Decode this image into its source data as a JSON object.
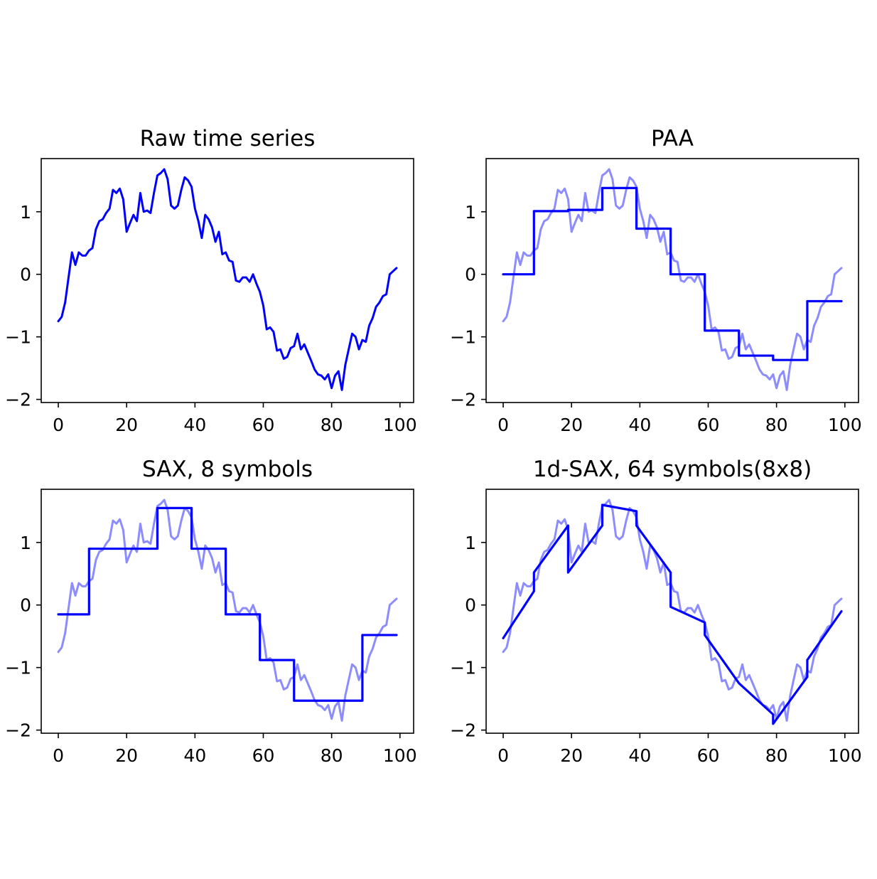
{
  "chart_data": [
    {
      "type": "line",
      "title": "Raw time series",
      "xlabel": "",
      "ylabel": "",
      "xlim": [
        -5,
        104
      ],
      "ylim": [
        -2.05,
        1.85
      ],
      "xticks": [
        0,
        20,
        40,
        60,
        80,
        100
      ],
      "yticks": [
        -2,
        -1,
        0,
        1
      ],
      "grid": false,
      "series": [
        {
          "role": "raw",
          "color": "#0000ff",
          "opacity": 1.0,
          "x": [
            0,
            1,
            2,
            3,
            4,
            5,
            6,
            7,
            8,
            9,
            10,
            11,
            12,
            13,
            14,
            15,
            16,
            17,
            18,
            19,
            20,
            21,
            22,
            23,
            24,
            25,
            26,
            27,
            28,
            29,
            30,
            31,
            32,
            33,
            34,
            35,
            36,
            37,
            38,
            39,
            40,
            41,
            42,
            43,
            44,
            45,
            46,
            47,
            48,
            49,
            50,
            51,
            52,
            53,
            54,
            55,
            56,
            57,
            58,
            59,
            60,
            61,
            62,
            63,
            64,
            65,
            66,
            67,
            68,
            69,
            70,
            71,
            72,
            73,
            74,
            75,
            76,
            77,
            78,
            79,
            80,
            81,
            82,
            83,
            84,
            85,
            86,
            87,
            88,
            89,
            90,
            91,
            92,
            93,
            94,
            95,
            96,
            97,
            98,
            99
          ],
          "y": [
            -0.75,
            -0.68,
            -0.45,
            -0.05,
            0.35,
            0.15,
            0.35,
            0.3,
            0.3,
            0.38,
            0.42,
            0.72,
            0.85,
            0.88,
            0.98,
            1.05,
            1.35,
            1.3,
            1.37,
            1.2,
            0.68,
            0.82,
            0.95,
            0.85,
            1.3,
            1.0,
            1.02,
            0.98,
            1.3,
            1.58,
            1.62,
            1.68,
            1.52,
            1.1,
            1.05,
            1.1,
            1.35,
            1.55,
            1.5,
            1.4,
            1.05,
            0.85,
            0.58,
            0.95,
            0.88,
            0.75,
            0.52,
            0.68,
            0.32,
            0.35,
            0.22,
            0.2,
            -0.1,
            -0.12,
            -0.05,
            -0.05,
            -0.12,
            0.0,
            -0.15,
            -0.28,
            -0.5,
            -0.88,
            -0.85,
            -0.92,
            -1.22,
            -1.2,
            -1.35,
            -1.32,
            -1.18,
            -1.15,
            -0.95,
            -1.2,
            -1.12,
            -1.25,
            -1.38,
            -1.52,
            -1.6,
            -1.62,
            -1.68,
            -1.6,
            -1.82,
            -1.62,
            -1.55,
            -1.85,
            -1.45,
            -1.2,
            -0.95,
            -1.0,
            -1.2,
            -1.05,
            -1.08,
            -0.82,
            -0.7,
            -0.52,
            -0.45,
            -0.35,
            -0.32,
            0.0,
            0.05,
            0.1
          ]
        }
      ]
    },
    {
      "type": "line",
      "title": "PAA",
      "xlabel": "",
      "ylabel": "",
      "xlim": [
        -5,
        104
      ],
      "ylim": [
        -2.05,
        1.85
      ],
      "xticks": [
        0,
        20,
        40,
        60,
        80,
        100
      ],
      "yticks": [
        -2,
        -1,
        0,
        1
      ],
      "grid": false,
      "series": [
        {
          "role": "raw",
          "color": "#0000ff",
          "opacity": 0.45,
          "source": "raw"
        },
        {
          "role": "approximation",
          "color": "#0000ff",
          "opacity": 1.0,
          "segments": [
            {
              "x_start": 0,
              "x_end": 9,
              "y": 0.0
            },
            {
              "x_start": 9,
              "x_end": 19,
              "y": 1.01
            },
            {
              "x_start": 19,
              "x_end": 29,
              "y": 1.03
            },
            {
              "x_start": 29,
              "x_end": 39,
              "y": 1.38
            },
            {
              "x_start": 39,
              "x_end": 49,
              "y": 0.73
            },
            {
              "x_start": 49,
              "x_end": 59,
              "y": 0.0
            },
            {
              "x_start": 59,
              "x_end": 69,
              "y": -0.9
            },
            {
              "x_start": 69,
              "x_end": 79,
              "y": -1.3
            },
            {
              "x_start": 79,
              "x_end": 89,
              "y": -1.37
            },
            {
              "x_start": 89,
              "x_end": 99,
              "y": -0.43
            }
          ]
        }
      ]
    },
    {
      "type": "line",
      "title": "SAX, 8 symbols",
      "xlabel": "",
      "ylabel": "",
      "xlim": [
        -5,
        104
      ],
      "ylim": [
        -2.05,
        1.85
      ],
      "xticks": [
        0,
        20,
        40,
        60,
        80,
        100
      ],
      "yticks": [
        -2,
        -1,
        0,
        1
      ],
      "grid": false,
      "series": [
        {
          "role": "raw",
          "color": "#0000ff",
          "opacity": 0.45,
          "source": "raw"
        },
        {
          "role": "approximation",
          "color": "#0000ff",
          "opacity": 1.0,
          "segments": [
            {
              "x_start": 0,
              "x_end": 9,
              "y": -0.15
            },
            {
              "x_start": 9,
              "x_end": 19,
              "y": 0.9
            },
            {
              "x_start": 19,
              "x_end": 29,
              "y": 0.9
            },
            {
              "x_start": 29,
              "x_end": 39,
              "y": 1.55
            },
            {
              "x_start": 39,
              "x_end": 49,
              "y": 0.9
            },
            {
              "x_start": 49,
              "x_end": 59,
              "y": -0.15
            },
            {
              "x_start": 59,
              "x_end": 69,
              "y": -0.88
            },
            {
              "x_start": 69,
              "x_end": 79,
              "y": -1.53
            },
            {
              "x_start": 79,
              "x_end": 89,
              "y": -1.53
            },
            {
              "x_start": 89,
              "x_end": 99,
              "y": -0.48
            }
          ]
        }
      ]
    },
    {
      "type": "line",
      "title": "1d-SAX, 64 symbols(8x8)",
      "xlabel": "",
      "ylabel": "",
      "xlim": [
        -5,
        104
      ],
      "ylim": [
        -2.05,
        1.85
      ],
      "xticks": [
        0,
        20,
        40,
        60,
        80,
        100
      ],
      "yticks": [
        -2,
        -1,
        0,
        1
      ],
      "grid": false,
      "series": [
        {
          "role": "raw",
          "color": "#0000ff",
          "opacity": 0.45,
          "source": "raw"
        },
        {
          "role": "approximation",
          "color": "#0000ff",
          "opacity": 1.0,
          "segments": [
            {
              "x_start": 0,
              "y_start": -0.53,
              "x_end": 9,
              "y_end": 0.22
            },
            {
              "x_start": 9,
              "y_start": 0.52,
              "x_end": 19,
              "y_end": 1.27
            },
            {
              "x_start": 19,
              "y_start": 0.52,
              "x_end": 29,
              "y_end": 1.27
            },
            {
              "x_start": 29,
              "y_start": 1.6,
              "x_end": 39,
              "y_end": 1.5
            },
            {
              "x_start": 39,
              "y_start": 1.27,
              "x_end": 49,
              "y_end": 0.52
            },
            {
              "x_start": 49,
              "y_start": -0.03,
              "x_end": 59,
              "y_end": -0.28
            },
            {
              "x_start": 59,
              "y_start": -0.48,
              "x_end": 69,
              "y_end": -1.25
            },
            {
              "x_start": 69,
              "y_start": -1.25,
              "x_end": 79,
              "y_end": -1.75
            },
            {
              "x_start": 79,
              "y_start": -1.9,
              "x_end": 89,
              "y_end": -1.15
            },
            {
              "x_start": 89,
              "y_start": -0.88,
              "x_end": 99,
              "y_end": -0.1
            }
          ]
        }
      ]
    }
  ]
}
